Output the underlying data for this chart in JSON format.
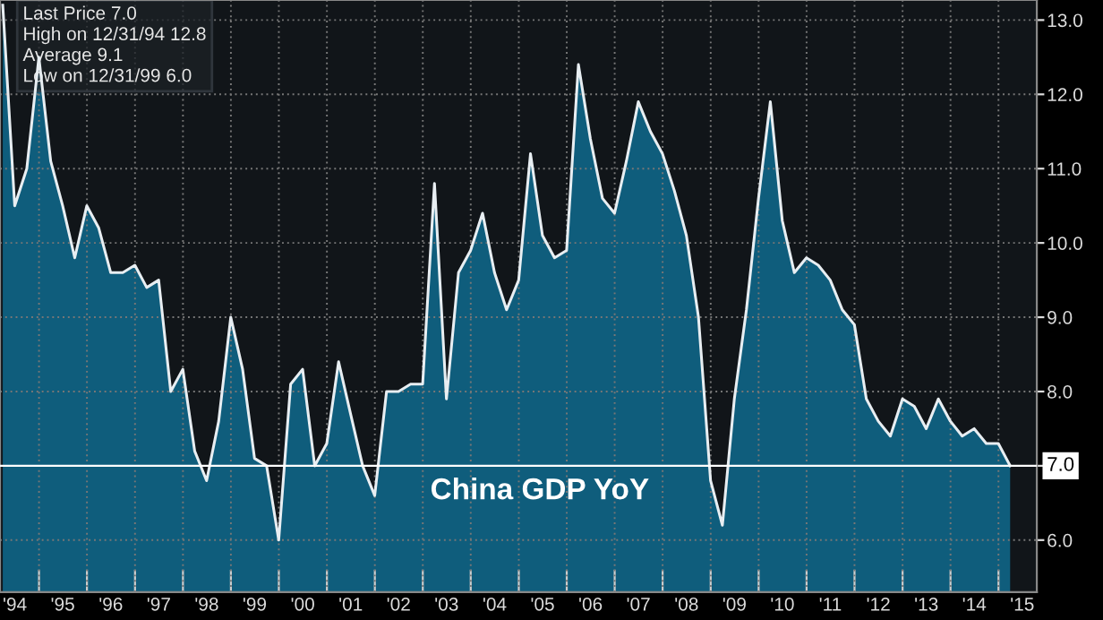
{
  "chart_data": {
    "type": "area",
    "x": [
      "1994-03-31",
      "1994-06-30",
      "1994-09-30",
      "1994-12-31",
      "1995-03-31",
      "1995-06-30",
      "1995-09-30",
      "1995-12-31",
      "1996-03-31",
      "1996-06-30",
      "1996-09-30",
      "1996-12-31",
      "1997-03-31",
      "1997-06-30",
      "1997-09-30",
      "1997-12-31",
      "1998-03-31",
      "1998-06-30",
      "1998-09-30",
      "1998-12-31",
      "1999-03-31",
      "1999-06-30",
      "1999-09-30",
      "1999-12-31",
      "2000-03-31",
      "2000-06-30",
      "2000-09-30",
      "2000-12-31",
      "2001-03-31",
      "2001-06-30",
      "2001-09-30",
      "2001-12-31",
      "2002-03-31",
      "2002-06-30",
      "2002-09-30",
      "2002-12-31",
      "2003-03-31",
      "2003-06-30",
      "2003-09-30",
      "2003-12-31",
      "2004-03-31",
      "2004-06-30",
      "2004-09-30",
      "2004-12-31",
      "2005-03-31",
      "2005-06-30",
      "2005-09-30",
      "2005-12-31",
      "2006-03-31",
      "2006-06-30",
      "2006-09-30",
      "2006-12-31",
      "2007-03-31",
      "2007-06-30",
      "2007-09-30",
      "2007-12-31",
      "2008-03-31",
      "2008-06-30",
      "2008-09-30",
      "2008-12-31",
      "2009-03-31",
      "2009-06-30",
      "2009-09-30",
      "2009-12-31",
      "2010-03-31",
      "2010-06-30",
      "2010-09-30",
      "2010-12-31",
      "2011-03-31",
      "2011-06-30",
      "2011-09-30",
      "2011-12-31",
      "2012-03-31",
      "2012-06-30",
      "2012-09-30",
      "2012-12-31",
      "2013-03-31",
      "2013-06-30",
      "2013-09-30",
      "2013-12-31",
      "2014-03-31",
      "2014-06-30",
      "2014-09-30",
      "2014-12-31",
      "2015-03-31"
    ],
    "series": [
      {
        "color": "#0f5d7c",
        "values": [
          13.2,
          10.5,
          11.0,
          12.5,
          11.1,
          10.5,
          9.8,
          10.5,
          10.2,
          9.6,
          9.6,
          9.7,
          9.4,
          9.5,
          8.0,
          8.3,
          7.2,
          6.8,
          7.6,
          9.0,
          8.3,
          7.1,
          7.0,
          6.0,
          8.1,
          8.3,
          7.0,
          7.3,
          8.4,
          7.7,
          7.0,
          6.6,
          8.0,
          8.0,
          8.1,
          8.1,
          10.8,
          7.9,
          9.6,
          9.9,
          10.4,
          9.6,
          9.1,
          9.5,
          11.2,
          10.1,
          9.8,
          9.9,
          12.4,
          11.4,
          10.6,
          10.4,
          11.1,
          11.9,
          11.5,
          11.2,
          10.7,
          10.1,
          9.0,
          6.8,
          6.2,
          7.9,
          9.1,
          10.6,
          11.9,
          10.3,
          9.6,
          9.8,
          9.7,
          9.5,
          9.1,
          8.9,
          7.9,
          7.6,
          7.4,
          7.9,
          7.8,
          7.5,
          7.9,
          7.6,
          7.4,
          7.5,
          7.3,
          7.3,
          7.0
        ]
      }
    ],
    "xlim": [
      "1994-03-10",
      "2015-10-20"
    ],
    "ylim": [
      5.3,
      13.27
    ],
    "yticks": [
      {
        "value": 6,
        "label": "6.0"
      },
      {
        "value": 7,
        "label": null
      },
      {
        "value": 8,
        "label": "8.0"
      },
      {
        "value": 9,
        "label": "9.0"
      },
      {
        "value": 10,
        "label": "10.0"
      },
      {
        "value": 11,
        "label": "11.0"
      },
      {
        "value": 12,
        "label": "12.0"
      },
      {
        "value": 13,
        "label": "13.0"
      }
    ],
    "xticks": [
      {
        "value": "1995-01-01",
        "label": null
      },
      {
        "value": "1996-01-01",
        "label": null
      },
      {
        "value": "1997-01-01",
        "label": null
      },
      {
        "value": "1998-01-01",
        "label": null
      },
      {
        "value": "1999-01-01",
        "label": null
      },
      {
        "value": "2000-01-01",
        "label": null
      },
      {
        "value": "2001-01-01",
        "label": null
      },
      {
        "value": "2002-01-01",
        "label": null
      },
      {
        "value": "2003-01-01",
        "label": null
      },
      {
        "value": "2004-01-01",
        "label": null
      },
      {
        "value": "2005-01-01",
        "label": null
      },
      {
        "value": "2006-01-01",
        "label": null
      },
      {
        "value": "2007-01-01",
        "label": null
      },
      {
        "value": "2008-01-01",
        "label": null
      },
      {
        "value": "2009-01-01",
        "label": null
      },
      {
        "value": "2010-01-01",
        "label": null
      },
      {
        "value": "2011-01-01",
        "label": null
      },
      {
        "value": "2012-01-01",
        "label": null
      },
      {
        "value": "2013-01-01",
        "label": null
      },
      {
        "value": "2014-01-01",
        "label": null
      },
      {
        "value": "2015-01-01",
        "label": null
      },
      {
        "value": "1994-07-01",
        "label": "'94"
      },
      {
        "value": "1995-07-01",
        "label": "'95"
      },
      {
        "value": "1996-07-01",
        "label": "'96"
      },
      {
        "value": "1997-07-01",
        "label": "'97"
      },
      {
        "value": "1998-07-01",
        "label": "'98"
      },
      {
        "value": "1999-07-01",
        "label": "'99"
      },
      {
        "value": "2000-07-01",
        "label": "'00"
      },
      {
        "value": "2001-07-01",
        "label": "'01"
      },
      {
        "value": "2002-07-01",
        "label": "'02"
      },
      {
        "value": "2003-07-01",
        "label": "'03"
      },
      {
        "value": "2004-07-01",
        "label": "'04"
      },
      {
        "value": "2005-07-01",
        "label": "'05"
      },
      {
        "value": "2006-07-01",
        "label": "'06"
      },
      {
        "value": "2007-07-01",
        "label": "'07"
      },
      {
        "value": "2008-07-01",
        "label": "'08"
      },
      {
        "value": "2009-07-01",
        "label": "'09"
      },
      {
        "value": "2010-07-01",
        "label": "'10"
      },
      {
        "value": "2011-07-01",
        "label": "'11"
      },
      {
        "value": "2012-07-01",
        "label": "'12"
      },
      {
        "value": "2013-07-01",
        "label": "'13"
      },
      {
        "value": "2014-07-01",
        "label": "'14"
      },
      {
        "value": "2015-07-01",
        "label": "'15"
      }
    ],
    "ref_lines": [
      {
        "axis": "y",
        "value": 7.0,
        "label": "7.0",
        "color": "#ffffff"
      }
    ],
    "annotations": [
      "China GDP YoY",
      "Last Price 7.0",
      "High on 12/31/94 12.8",
      "Average 9.1",
      "Low on 12/31/99 6.0"
    ],
    "grid": true
  }
}
